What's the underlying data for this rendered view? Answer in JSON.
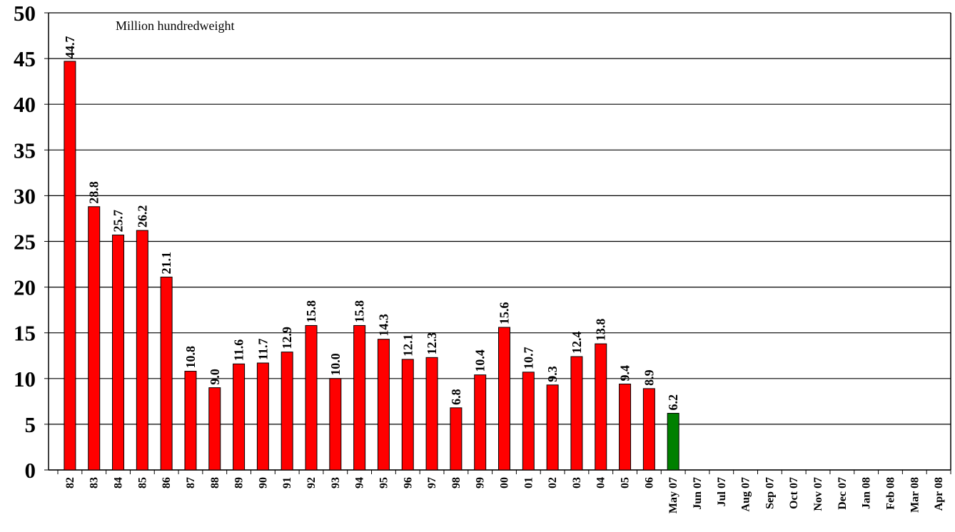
{
  "chart_data": {
    "type": "bar",
    "annotation": "Million hundredweight",
    "categories": [
      "82",
      "83",
      "84",
      "85",
      "86",
      "87",
      "88",
      "89",
      "90",
      "91",
      "92",
      "93",
      "94",
      "95",
      "96",
      "97",
      "98",
      "99",
      "00",
      "01",
      "02",
      "03",
      "04",
      "05",
      "06",
      "May 07",
      "Jun 07",
      "Jul 07",
      "Aug 07",
      "Sep 07",
      "Oct 07",
      "Nov 07",
      "Dec 07",
      "Jan 08",
      "Feb 08",
      "Mar 08",
      "Apr 08"
    ],
    "values": [
      44.7,
      28.8,
      25.7,
      26.2,
      21.1,
      10.8,
      9.0,
      11.6,
      11.7,
      12.9,
      15.8,
      10.0,
      15.8,
      14.3,
      12.1,
      12.3,
      6.8,
      10.4,
      15.6,
      10.7,
      9.3,
      12.4,
      13.8,
      9.4,
      8.9,
      6.2,
      null,
      null,
      null,
      null,
      null,
      null,
      null,
      null,
      null,
      null,
      null
    ],
    "value_labels": [
      "44.7",
      "28.8",
      "25.7",
      "26.2",
      "21.1",
      "10.8",
      "9.0",
      "11.6",
      "11.7",
      "12.9",
      "15.8",
      "10.0",
      "15.8",
      "14.3",
      "12.1",
      "12.3",
      "6.8",
      "10.4",
      "15.6",
      "10.7",
      "9.3",
      "12.4",
      "13.8",
      "9.4",
      "8.9",
      "6.2",
      null,
      null,
      null,
      null,
      null,
      null,
      null,
      null,
      null,
      null,
      null
    ],
    "colors": [
      "#ff0000",
      "#ff0000",
      "#ff0000",
      "#ff0000",
      "#ff0000",
      "#ff0000",
      "#ff0000",
      "#ff0000",
      "#ff0000",
      "#ff0000",
      "#ff0000",
      "#ff0000",
      "#ff0000",
      "#ff0000",
      "#ff0000",
      "#ff0000",
      "#ff0000",
      "#ff0000",
      "#ff0000",
      "#ff0000",
      "#ff0000",
      "#ff0000",
      "#ff0000",
      "#ff0000",
      "#ff0000",
      "#008000",
      "#ff0000",
      "#ff0000",
      "#ff0000",
      "#ff0000",
      "#ff0000",
      "#ff0000",
      "#ff0000",
      "#ff0000",
      "#ff0000",
      "#ff0000",
      "#ff0000"
    ],
    "ylim": [
      0,
      50
    ],
    "yticks": [
      0,
      5,
      10,
      15,
      20,
      25,
      30,
      35,
      40,
      45,
      50
    ],
    "grid": true
  }
}
